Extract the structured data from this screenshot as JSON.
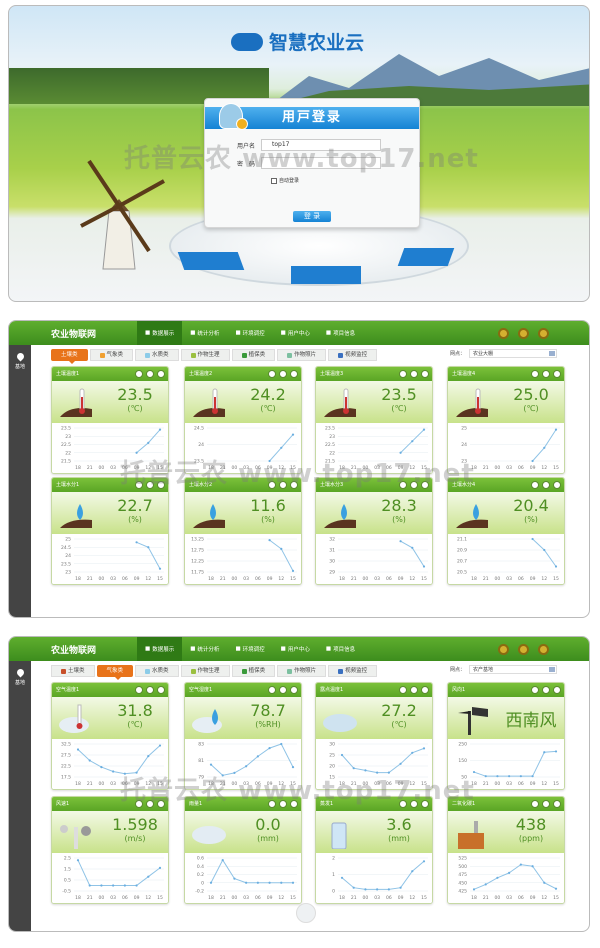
{
  "login": {
    "logo": "智慧农业云",
    "title": "用戸登录",
    "username_label": "用户名",
    "username_value": "top17",
    "password_label": "密　码",
    "password_value": "",
    "remember_label": "自动登录",
    "submit_label": "登 录"
  },
  "watermark": "托普云农 www.top17.net",
  "colors": {
    "header_green": "#4c9e25",
    "active_tab": "#e8731a",
    "value_green": "#4f8f23",
    "series": "#8fc3e6"
  },
  "dashboards": [
    {
      "brand": "农业物联网",
      "nav": [
        {
          "label": "数据展示",
          "icon": "monitor-icon",
          "active": true
        },
        {
          "label": "统计分析",
          "icon": "chart-icon"
        },
        {
          "label": "环境调控",
          "icon": "plus-icon"
        },
        {
          "label": "用户中心",
          "icon": "user-icon"
        },
        {
          "label": "项目信息",
          "icon": "info-icon"
        }
      ],
      "side_label": "基地",
      "tabs": [
        {
          "label": "土壤类",
          "active": true
        },
        {
          "label": "气象类"
        },
        {
          "label": "水质类"
        },
        {
          "label": "作物生理"
        },
        {
          "label": "植保类"
        },
        {
          "label": "作物照片"
        },
        {
          "label": "视频监控"
        }
      ],
      "filter_label": "网点：",
      "filter_value": "农业大棚",
      "cards": [
        {
          "title": "土壤温度1",
          "value": "23.5",
          "unit": "(℃)",
          "icon": "soil-thermometer",
          "yticks": [
            21.5,
            22,
            22.5,
            23,
            23.5
          ],
          "values": [
            null,
            null,
            null,
            null,
            null,
            22,
            22.6,
            23.4
          ]
        },
        {
          "title": "土壤温度2",
          "value": "24.2",
          "unit": "(℃)",
          "icon": "soil-thermometer",
          "yticks": [
            23.5,
            24,
            24.5
          ],
          "values": [
            null,
            null,
            null,
            null,
            null,
            23.5,
            23.9,
            24.3
          ]
        },
        {
          "title": "土壤温度3",
          "value": "23.5",
          "unit": "(℃)",
          "icon": "soil-thermometer",
          "yticks": [
            21.5,
            22,
            22.5,
            23,
            23.5
          ],
          "values": [
            null,
            null,
            null,
            null,
            null,
            22,
            22.7,
            23.4
          ]
        },
        {
          "title": "土壤温度4",
          "value": "25.0",
          "unit": "(℃)",
          "icon": "soil-thermometer",
          "yticks": [
            23,
            24,
            25
          ],
          "values": [
            null,
            null,
            null,
            null,
            null,
            23,
            23.8,
            24.9
          ]
        },
        {
          "title": "土壤水分1",
          "value": "22.7",
          "unit": "(%)",
          "icon": "soil-moisture",
          "yticks": [
            23,
            23.5,
            24,
            24.5,
            25
          ],
          "values": [
            null,
            null,
            null,
            null,
            null,
            24.8,
            24.5,
            23.2
          ]
        },
        {
          "title": "土壤水分2",
          "value": "11.6",
          "unit": "(%)",
          "icon": "soil-moisture",
          "yticks": [
            11.75,
            12.25,
            12.75,
            13.25
          ],
          "values": [
            null,
            null,
            null,
            null,
            null,
            13.2,
            12.8,
            11.8
          ]
        },
        {
          "title": "土壤水分3",
          "value": "28.3",
          "unit": "(%)",
          "icon": "soil-moisture",
          "yticks": [
            29,
            30,
            31,
            32
          ],
          "values": [
            null,
            null,
            null,
            null,
            null,
            31.8,
            31.2,
            29.5
          ]
        },
        {
          "title": "土壤水分4",
          "value": "20.4",
          "unit": "(%)",
          "icon": "soil-moisture",
          "yticks": [
            20.5,
            20.7,
            20.9,
            21.1
          ],
          "values": [
            null,
            null,
            null,
            null,
            null,
            21.1,
            20.9,
            20.6
          ]
        }
      ]
    },
    {
      "brand": "农业物联网",
      "nav": [
        {
          "label": "数据展示",
          "icon": "monitor-icon",
          "active": true
        },
        {
          "label": "统计分析",
          "icon": "chart-icon"
        },
        {
          "label": "环境调控",
          "icon": "plus-icon"
        },
        {
          "label": "用户中心",
          "icon": "user-icon"
        },
        {
          "label": "项目信息",
          "icon": "info-icon"
        }
      ],
      "side_label": "基地",
      "tabs": [
        {
          "label": "土壤类"
        },
        {
          "label": "气象类",
          "active": true
        },
        {
          "label": "水质类"
        },
        {
          "label": "作物生理"
        },
        {
          "label": "植保类"
        },
        {
          "label": "作物照片"
        },
        {
          "label": "视频监控"
        }
      ],
      "filter_label": "网点：",
      "filter_value": "农产基地",
      "cards": [
        {
          "title": "空气温度1",
          "value": "31.8",
          "unit": "(℃)",
          "icon": "cloud-thermometer",
          "yticks": [
            17.5,
            22.5,
            27.5,
            32.5
          ],
          "values": [
            30,
            25,
            22,
            20,
            19,
            19.5,
            27,
            31.8
          ]
        },
        {
          "title": "空气湿度1",
          "value": "78.7",
          "unit": "(%RH)",
          "icon": "cloud-drop",
          "yticks": [
            79,
            81,
            83
          ],
          "values": [
            80.5,
            79.2,
            79.5,
            80.3,
            81.5,
            82.5,
            83,
            80.2
          ]
        },
        {
          "title": "露点温度1",
          "value": "27.2",
          "unit": "(℃)",
          "icon": "cloud",
          "yticks": [
            15,
            20,
            25,
            30
          ],
          "values": [
            25,
            19,
            18,
            17,
            17,
            21,
            26,
            28
          ]
        },
        {
          "title": "风向1",
          "value": "西南风",
          "unit": "",
          "icon": "wind-vane",
          "yticks": [
            50,
            150,
            250
          ],
          "values": [
            80,
            55,
            55,
            55,
            55,
            55,
            200,
            205
          ]
        },
        {
          "title": "风速1",
          "value": "1.598",
          "unit": "(m/s)",
          "icon": "anemometer",
          "yticks": [
            -0.5,
            0.5,
            1.5,
            2.5
          ],
          "values": [
            2.3,
            0,
            0,
            0,
            0,
            0,
            0.8,
            1.6
          ]
        },
        {
          "title": "雨量1",
          "value": "0.0",
          "unit": "(mm)",
          "icon": "rain-cloud",
          "yticks": [
            -0.2,
            0,
            0.2,
            0.4,
            0.6
          ],
          "values": [
            0,
            0.55,
            0.1,
            0,
            0,
            0,
            0,
            0
          ]
        },
        {
          "title": "蒸发1",
          "value": "3.6",
          "unit": "(mm)",
          "icon": "evaporation-gauge",
          "yticks": [
            0,
            1,
            2
          ],
          "values": [
            0.8,
            0.2,
            0.1,
            0.1,
            0.1,
            0.2,
            1.2,
            1.8
          ]
        },
        {
          "title": "二氧化碳1",
          "value": "438",
          "unit": "(ppm)",
          "icon": "co2-factory",
          "yticks": [
            425,
            450,
            475,
            500,
            525
          ],
          "values": [
            430,
            445,
            465,
            480,
            505,
            500,
            450,
            432
          ]
        }
      ]
    }
  ],
  "chart_xticks": [
    "18",
    "21",
    "00",
    "03",
    "06",
    "09",
    "12",
    "15"
  ]
}
